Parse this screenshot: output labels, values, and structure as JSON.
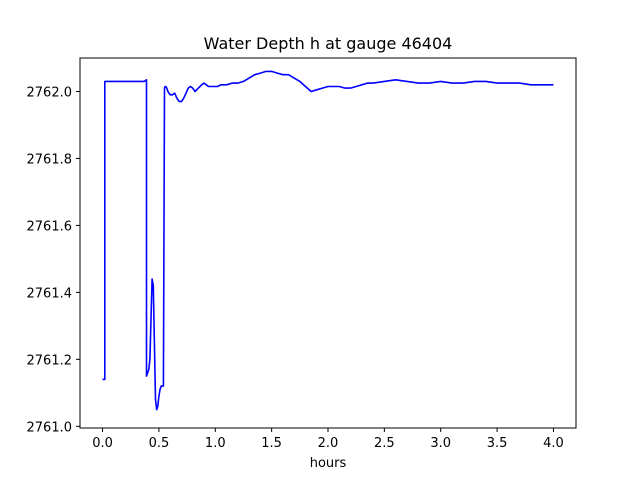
{
  "chart_data": {
    "type": "line",
    "title": "Water Depth h at gauge 46404",
    "xlabel": "hours",
    "ylabel": "",
    "xlim": [
      -0.2,
      4.2
    ],
    "ylim": [
      2760.995,
      2762.1
    ],
    "xticks": [
      0.0,
      0.5,
      1.0,
      1.5,
      2.0,
      2.5,
      3.0,
      3.5,
      4.0
    ],
    "xtick_labels": [
      "0.0",
      "0.5",
      "1.0",
      "1.5",
      "2.0",
      "2.5",
      "3.0",
      "3.5",
      "4.0"
    ],
    "yticks": [
      2761.0,
      2761.2,
      2761.4,
      2761.6,
      2761.8,
      2762.0
    ],
    "ytick_labels": [
      "2761.0",
      "2761.2",
      "2761.4",
      "2761.6",
      "2761.8",
      "2762.0"
    ],
    "grid": false,
    "series": [
      {
        "color": "#0000ff",
        "x": [
          0.0,
          0.02,
          0.02,
          0.02,
          0.2,
          0.37,
          0.39,
          0.39,
          0.41,
          0.42,
          0.43,
          0.44,
          0.45,
          0.46,
          0.47,
          0.48,
          0.49,
          0.5,
          0.51,
          0.52,
          0.53,
          0.54,
          0.55,
          0.555,
          0.56,
          0.57,
          0.58,
          0.6,
          0.62,
          0.64,
          0.66,
          0.68,
          0.7,
          0.72,
          0.74,
          0.76,
          0.78,
          0.8,
          0.82,
          0.85,
          0.88,
          0.9,
          0.92,
          0.94,
          0.96,
          0.98,
          1.0,
          1.02,
          1.05,
          1.08,
          1.1,
          1.15,
          1.2,
          1.25,
          1.3,
          1.35,
          1.4,
          1.45,
          1.5,
          1.55,
          1.6,
          1.65,
          1.7,
          1.75,
          1.8,
          1.85,
          1.9,
          1.95,
          2.0,
          2.05,
          2.1,
          2.15,
          2.2,
          2.25,
          2.3,
          2.35,
          2.4,
          2.5,
          2.6,
          2.7,
          2.8,
          2.9,
          3.0,
          3.1,
          3.2,
          3.3,
          3.4,
          3.5,
          3.6,
          3.7,
          3.8,
          3.9,
          4.0
        ],
        "y": [
          2761.14,
          2761.14,
          2762.03,
          2762.03,
          2762.03,
          2762.03,
          2762.035,
          2761.15,
          2761.17,
          2761.2,
          2761.32,
          2761.44,
          2761.42,
          2761.25,
          2761.08,
          2761.05,
          2761.06,
          2761.09,
          2761.11,
          2761.12,
          2761.12,
          2761.12,
          2762.01,
          2762.015,
          2762.015,
          2762.01,
          2762.0,
          2761.99,
          2761.99,
          2761.995,
          2761.98,
          2761.97,
          2761.97,
          2761.98,
          2761.995,
          2762.01,
          2762.015,
          2762.01,
          2762.0,
          2762.01,
          2762.02,
          2762.025,
          2762.02,
          2762.015,
          2762.015,
          2762.015,
          2762.015,
          2762.015,
          2762.02,
          2762.02,
          2762.02,
          2762.025,
          2762.025,
          2762.03,
          2762.04,
          2762.05,
          2762.055,
          2762.06,
          2762.06,
          2762.055,
          2762.05,
          2762.05,
          2762.04,
          2762.03,
          2762.015,
          2762.0,
          2762.005,
          2762.01,
          2762.015,
          2762.015,
          2762.015,
          2762.01,
          2762.01,
          2762.015,
          2762.02,
          2762.025,
          2762.025,
          2762.03,
          2762.035,
          2762.03,
          2762.025,
          2762.025,
          2762.03,
          2762.025,
          2762.025,
          2762.03,
          2762.03,
          2762.025,
          2762.025,
          2762.025,
          2762.02,
          2762.02,
          2762.02
        ]
      }
    ]
  }
}
